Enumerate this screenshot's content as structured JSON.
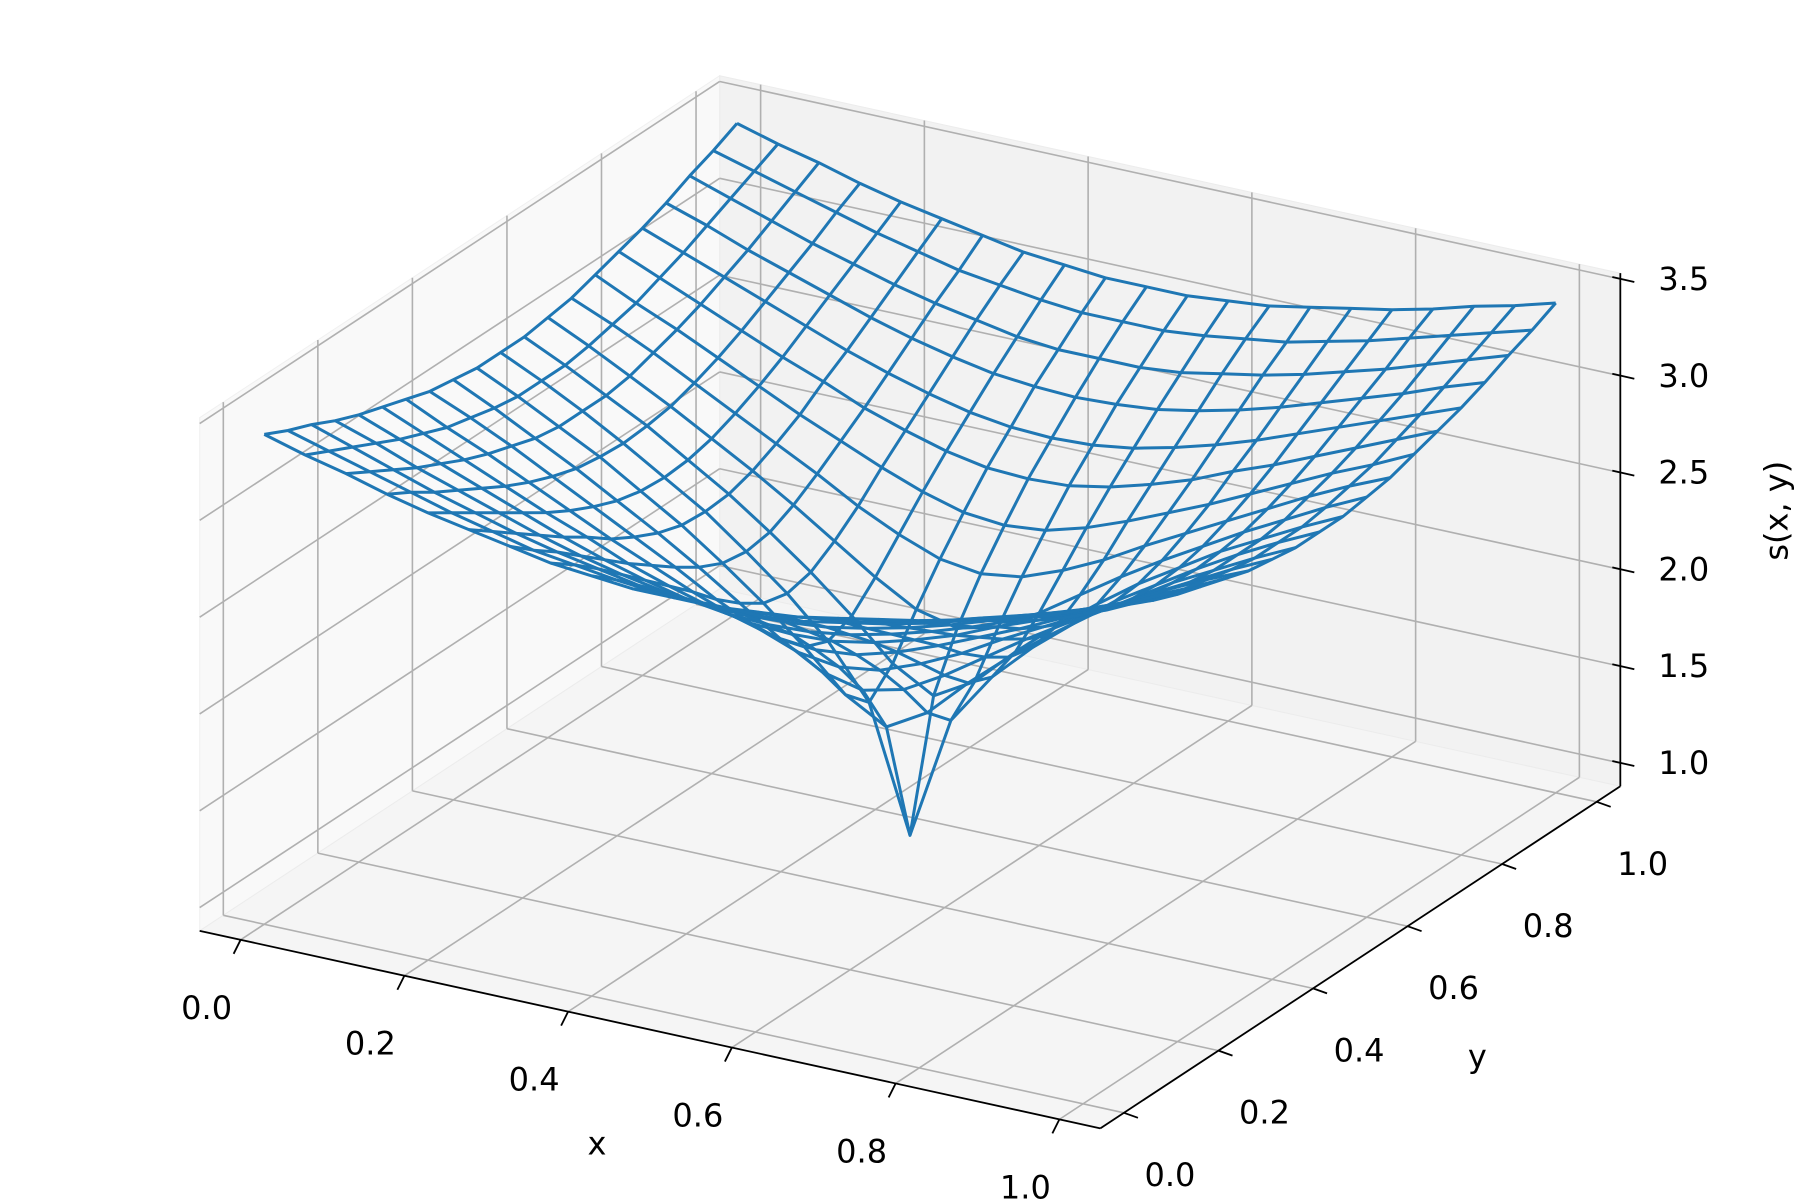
{
  "chart_data": {
    "type": "wireframe",
    "xlabel": "x",
    "ylabel": "y",
    "zlabel": "s(x, y)",
    "color": "#1f77b4",
    "grid": true,
    "xlim": [
      -0.05,
      1.05
    ],
    "ylim": [
      -0.05,
      1.05
    ],
    "zlim": [
      0.88,
      3.53
    ],
    "xticks": [
      {
        "value": 0,
        "label": "0.0"
      },
      0.2,
      0.4,
      0.6,
      0.8,
      {
        "value": 1,
        "label": "1.0"
      }
    ],
    "yticks": [
      {
        "value": 0,
        "label": "0.0"
      },
      0.2,
      0.4,
      0.6,
      0.8,
      {
        "value": 1,
        "label": "1.0"
      }
    ],
    "zticks": [
      {
        "value": 1,
        "label": "1.0"
      },
      1.5,
      {
        "value": 2,
        "label": "2.0"
      },
      2.5,
      {
        "value": 3,
        "label": "3.0"
      },
      3.5
    ],
    "x": [
      0,
      0.05,
      0.1,
      0.15,
      0.2,
      0.25,
      0.3,
      0.35,
      0.4,
      0.45,
      0.5,
      0.55,
      0.6,
      0.65,
      0.7,
      0.75,
      0.8,
      0.85,
      0.9,
      0.95,
      1
    ],
    "y": [
      0,
      0.05,
      0.1,
      0.15,
      0.2,
      0.25,
      0.3,
      0.35,
      0.4,
      0.45,
      0.5,
      0.55,
      0.6,
      0.65,
      0.7,
      0.75,
      0.8,
      0.85,
      0.9,
      0.95,
      1
    ],
    "z": [
      [
        3.41,
        3.35,
        3.3,
        3.24,
        3.19,
        3.15,
        3.11,
        3.07,
        3.05,
        3.03,
        3.03,
        3.03,
        3.05,
        3.07,
        3.11,
        3.15,
        3.19,
        3.24,
        3.3,
        3.35,
        3.41
      ],
      [
        3.35,
        3.29,
        3.23,
        3.17,
        3.11,
        3.06,
        3.01,
        2.98,
        2.95,
        2.93,
        2.93,
        2.93,
        2.95,
        2.98,
        3.01,
        3.06,
        3.11,
        3.17,
        3.23,
        3.29,
        3.35
      ],
      [
        3.3,
        3.23,
        3.16,
        3.09,
        3.03,
        2.97,
        2.92,
        2.88,
        2.84,
        2.82,
        2.82,
        2.82,
        2.84,
        2.88,
        2.92,
        2.97,
        3.03,
        3.09,
        3.16,
        3.23,
        3.3
      ],
      [
        3.24,
        3.17,
        3.09,
        3.02,
        2.95,
        2.88,
        2.82,
        2.77,
        2.73,
        2.71,
        2.7,
        2.71,
        2.73,
        2.77,
        2.82,
        2.88,
        2.95,
        3.02,
        3.09,
        3.17,
        3.24
      ],
      [
        3.19,
        3.11,
        3.03,
        2.95,
        2.87,
        2.79,
        2.72,
        2.66,
        2.61,
        2.58,
        2.57,
        2.58,
        2.61,
        2.66,
        2.72,
        2.79,
        2.87,
        2.95,
        3.03,
        3.11,
        3.19
      ],
      [
        3.15,
        3.06,
        2.97,
        2.88,
        2.79,
        2.71,
        2.62,
        2.55,
        2.49,
        2.45,
        2.44,
        2.45,
        2.49,
        2.55,
        2.62,
        2.71,
        2.79,
        2.88,
        2.97,
        3.06,
        3.15
      ],
      [
        3.11,
        3.01,
        2.92,
        2.82,
        2.72,
        2.62,
        2.53,
        2.44,
        2.36,
        2.3,
        2.28,
        2.3,
        2.36,
        2.44,
        2.53,
        2.62,
        2.72,
        2.82,
        2.92,
        3.01,
        3.11
      ],
      [
        3.07,
        2.98,
        2.88,
        2.77,
        2.66,
        2.55,
        2.44,
        2.32,
        2.22,
        2.14,
        2.11,
        2.14,
        2.22,
        2.32,
        2.44,
        2.55,
        2.66,
        2.77,
        2.88,
        2.98,
        3.07
      ],
      [
        3.05,
        2.95,
        2.84,
        2.73,
        2.61,
        2.49,
        2.36,
        2.22,
        2.08,
        1.96,
        1.91,
        1.96,
        2.08,
        2.22,
        2.36,
        2.49,
        2.61,
        2.73,
        2.84,
        2.95,
        3.05
      ],
      [
        3.03,
        2.93,
        2.82,
        2.71,
        2.58,
        2.45,
        2.3,
        2.14,
        1.96,
        1.76,
        1.64,
        1.76,
        1.96,
        2.14,
        2.3,
        2.45,
        2.58,
        2.71,
        2.82,
        2.93,
        3.03
      ],
      [
        3.03,
        2.93,
        2.82,
        2.7,
        2.57,
        2.44,
        2.28,
        2.11,
        1.91,
        1.64,
        1.0,
        1.64,
        1.91,
        2.11,
        2.28,
        2.44,
        2.57,
        2.7,
        2.82,
        2.93,
        3.03
      ],
      [
        3.03,
        2.93,
        2.82,
        2.71,
        2.58,
        2.45,
        2.3,
        2.14,
        1.96,
        1.76,
        1.64,
        1.76,
        1.96,
        2.14,
        2.3,
        2.45,
        2.58,
        2.71,
        2.82,
        2.93,
        3.03
      ],
      [
        3.05,
        2.95,
        2.84,
        2.73,
        2.61,
        2.49,
        2.36,
        2.22,
        2.08,
        1.96,
        1.91,
        1.96,
        2.08,
        2.22,
        2.36,
        2.49,
        2.61,
        2.73,
        2.84,
        2.95,
        3.05
      ],
      [
        3.07,
        2.98,
        2.88,
        2.77,
        2.66,
        2.55,
        2.44,
        2.32,
        2.22,
        2.14,
        2.11,
        2.14,
        2.22,
        2.32,
        2.44,
        2.55,
        2.66,
        2.77,
        2.88,
        2.98,
        3.07
      ],
      [
        3.11,
        3.01,
        2.92,
        2.82,
        2.72,
        2.62,
        2.53,
        2.44,
        2.36,
        2.3,
        2.28,
        2.3,
        2.36,
        2.44,
        2.53,
        2.62,
        2.72,
        2.82,
        2.92,
        3.01,
        3.11
      ],
      [
        3.15,
        3.06,
        2.97,
        2.88,
        2.79,
        2.71,
        2.62,
        2.55,
        2.49,
        2.45,
        2.44,
        2.45,
        2.49,
        2.55,
        2.62,
        2.71,
        2.79,
        2.88,
        2.97,
        3.06,
        3.15
      ],
      [
        3.19,
        3.11,
        3.03,
        2.95,
        2.87,
        2.79,
        2.72,
        2.66,
        2.61,
        2.58,
        2.57,
        2.58,
        2.61,
        2.66,
        2.72,
        2.79,
        2.87,
        2.95,
        3.03,
        3.11,
        3.19
      ],
      [
        3.24,
        3.17,
        3.09,
        3.02,
        2.95,
        2.88,
        2.82,
        2.77,
        2.73,
        2.71,
        2.7,
        2.71,
        2.73,
        2.77,
        2.82,
        2.88,
        2.95,
        3.02,
        3.09,
        3.17,
        3.24
      ],
      [
        3.3,
        3.23,
        3.16,
        3.09,
        3.03,
        2.97,
        2.92,
        2.88,
        2.84,
        2.82,
        2.82,
        2.82,
        2.84,
        2.88,
        2.92,
        2.97,
        3.03,
        3.09,
        3.16,
        3.23,
        3.3
      ],
      [
        3.35,
        3.29,
        3.23,
        3.17,
        3.11,
        3.06,
        3.01,
        2.98,
        2.95,
        2.93,
        2.93,
        2.93,
        2.95,
        2.98,
        3.01,
        3.06,
        3.11,
        3.17,
        3.23,
        3.29,
        3.35
      ],
      [
        3.41,
        3.35,
        3.3,
        3.24,
        3.19,
        3.15,
        3.11,
        3.07,
        3.05,
        3.03,
        3.03,
        3.03,
        3.05,
        3.07,
        3.11,
        3.15,
        3.19,
        3.24,
        3.3,
        3.35,
        3.41
      ]
    ]
  }
}
